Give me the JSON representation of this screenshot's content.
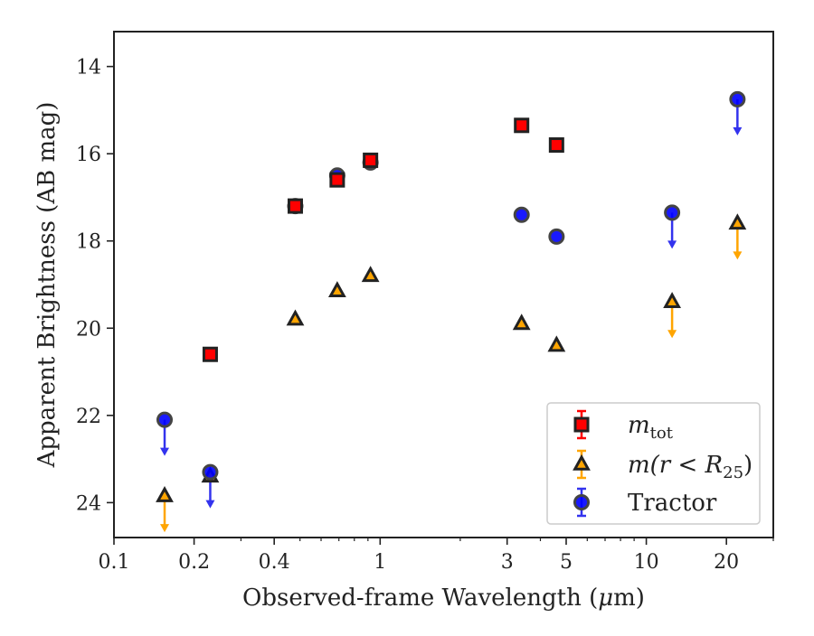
{
  "chart_data": {
    "type": "scatter",
    "xlabel_prefix": "Observed-frame Wavelength (",
    "xlabel_unit_greek": "μ",
    "xlabel_unit_rest": "m)",
    "ylabel": "Apparent Brightness (AB mag)",
    "x_scale": "log",
    "xlim": [
      0.1,
      30
    ],
    "ylim": [
      24.8,
      13.2
    ],
    "y_inverted": true,
    "grid": false,
    "legend_position": "lower-right",
    "x_ticks": [
      {
        "value": 0.1,
        "label": "0.1"
      },
      {
        "value": 0.2,
        "label": "0.2"
      },
      {
        "value": 0.4,
        "label": "0.4"
      },
      {
        "value": 1,
        "label": "1"
      },
      {
        "value": 3,
        "label": "3"
      },
      {
        "value": 5,
        "label": "5"
      },
      {
        "value": 10,
        "label": "10"
      },
      {
        "value": 20,
        "label": "20"
      }
    ],
    "y_ticks": [
      {
        "value": 14,
        "label": "14"
      },
      {
        "value": 16,
        "label": "16"
      },
      {
        "value": 18,
        "label": "18"
      },
      {
        "value": 20,
        "label": "20"
      },
      {
        "value": 22,
        "label": "22"
      },
      {
        "value": 24,
        "label": "24"
      }
    ],
    "series": [
      {
        "name": "m_tot",
        "legend_main": "m",
        "legend_sub": "tot",
        "marker": "square",
        "color": "#ff0000",
        "edge_color": "#222222",
        "points": [
          {
            "x": 0.23,
            "y": 20.6,
            "upper_limit": false
          },
          {
            "x": 0.48,
            "y": 17.2,
            "upper_limit": false
          },
          {
            "x": 0.69,
            "y": 16.6,
            "upper_limit": false
          },
          {
            "x": 0.92,
            "y": 16.15,
            "upper_limit": false
          },
          {
            "x": 3.4,
            "y": 15.35,
            "upper_limit": false
          },
          {
            "x": 4.6,
            "y": 15.8,
            "upper_limit": false
          }
        ]
      },
      {
        "name": "m(r < R25)",
        "legend_main": "m(r < R",
        "legend_sub": "25",
        "legend_close": ")",
        "marker": "triangle",
        "color": "#ffa500",
        "edge_color": "#222222",
        "points": [
          {
            "x": 0.155,
            "y": 23.85,
            "upper_limit": true
          },
          {
            "x": 0.23,
            "y": 23.4,
            "upper_limit": false
          },
          {
            "x": 0.48,
            "y": 19.8,
            "upper_limit": false
          },
          {
            "x": 0.69,
            "y": 19.15,
            "upper_limit": false
          },
          {
            "x": 0.92,
            "y": 18.8,
            "upper_limit": false
          },
          {
            "x": 3.4,
            "y": 19.9,
            "upper_limit": false
          },
          {
            "x": 4.6,
            "y": 20.4,
            "upper_limit": false
          },
          {
            "x": 12.5,
            "y": 19.4,
            "upper_limit": true
          },
          {
            "x": 22,
            "y": 17.6,
            "upper_limit": true
          }
        ]
      },
      {
        "name": "Tractor",
        "legend_main": "Tractor",
        "marker": "circle",
        "color": "#0000ff",
        "edge_color": "#444444",
        "points": [
          {
            "x": 0.155,
            "y": 22.1,
            "upper_limit": true
          },
          {
            "x": 0.23,
            "y": 23.3,
            "upper_limit": true
          },
          {
            "x": 0.48,
            "y": 17.2,
            "upper_limit": false
          },
          {
            "x": 0.69,
            "y": 16.5,
            "upper_limit": false
          },
          {
            "x": 0.92,
            "y": 16.2,
            "upper_limit": false
          },
          {
            "x": 3.4,
            "y": 17.4,
            "upper_limit": false
          },
          {
            "x": 4.6,
            "y": 17.9,
            "upper_limit": false
          },
          {
            "x": 12.5,
            "y": 17.35,
            "upper_limit": true
          },
          {
            "x": 22,
            "y": 14.75,
            "upper_limit": true
          }
        ]
      }
    ]
  }
}
